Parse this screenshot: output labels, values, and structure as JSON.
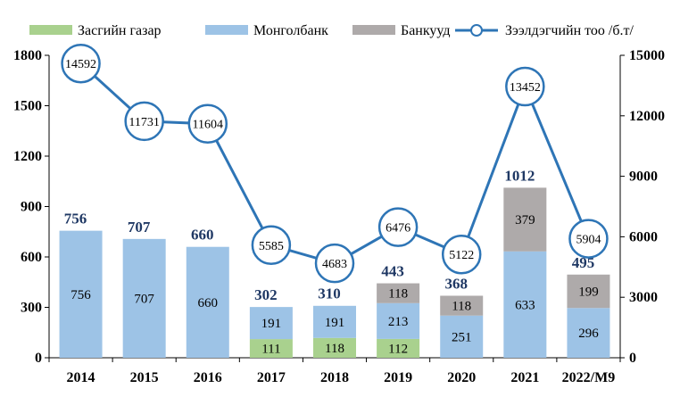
{
  "chart_data": {
    "type": "bar",
    "subtype": "stacked-bar-with-line",
    "categories": [
      "2014",
      "2015",
      "2016",
      "2017",
      "2018",
      "2019",
      "2020",
      "2021",
      "2022/М9"
    ],
    "series": [
      {
        "name": "Засгийн газар",
        "axis": "left",
        "color": "#a9d18e",
        "values": [
          null,
          null,
          null,
          111,
          118,
          112,
          null,
          null,
          null
        ]
      },
      {
        "name": "Монголбанк",
        "axis": "left",
        "color": "#9dc3e6",
        "values": [
          756,
          707,
          660,
          191,
          191,
          213,
          251,
          633,
          296
        ]
      },
      {
        "name": "Банкууд",
        "axis": "left",
        "color": "#aeaaaa",
        "values": [
          null,
          null,
          null,
          null,
          null,
          118,
          118,
          379,
          199
        ]
      },
      {
        "name": "Зээлдэгчийн тоо /б.т/",
        "type": "line",
        "axis": "right",
        "color": "#2e75b6",
        "values": [
          14592,
          11731,
          11604,
          5585,
          4683,
          6476,
          5122,
          13452,
          5904
        ]
      }
    ],
    "totals": [
      756,
      707,
      660,
      302,
      310,
      443,
      368,
      1012,
      495
    ],
    "left_axis": {
      "ylim": [
        0,
        1800
      ],
      "ticks": [
        "0",
        "300",
        "600",
        "900",
        "1200",
        "1500",
        "1800"
      ]
    },
    "right_axis": {
      "ylim": [
        0,
        15000
      ],
      "ticks": [
        "0",
        "3000",
        "6000",
        "9000",
        "12000",
        "15000"
      ]
    },
    "grid": false,
    "legend_position": "top",
    "title": "",
    "xlabel": "",
    "ylabel": ""
  }
}
